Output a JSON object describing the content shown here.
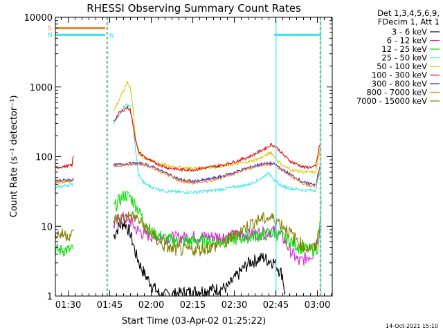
{
  "chart_data": {
    "type": "line",
    "title": "RHESSI Observing Summary Count Rates",
    "xlabel": "Start Time (03-Apr-02 01:25:22)",
    "ylabel": "Count Rate (s⁻¹ detector⁻¹)",
    "y_scale": "log",
    "ylim": [
      1,
      10000
    ],
    "xlim_minutes": [
      0,
      100
    ],
    "x_tick_labels": [
      "01:30",
      "01:45",
      "02:00",
      "02:15",
      "02:30",
      "02:45",
      "03:00"
    ],
    "x_tick_minutes": [
      4.63,
      19.63,
      34.63,
      49.63,
      64.63,
      79.63,
      94.63
    ],
    "y_tick_labels": [
      "1",
      "10",
      "100",
      "1000",
      "10000"
    ],
    "y_tick_values": [
      1,
      10,
      100,
      1000,
      10000
    ],
    "legend_header": [
      "Det 1,3,4,5,6,9,",
      "FDecim 1, Att 1"
    ],
    "legend_position": "right",
    "timestamp": "14-Oct-2021 15:10",
    "flags": [
      {
        "label": "S",
        "color": "#f08020",
        "value": 7000,
        "ranges_min": [
          [
            0,
            18
          ]
        ]
      },
      {
        "label": "N",
        "color": "#30e8f0",
        "value": 5600,
        "ranges_min": [
          [
            0,
            18
          ],
          [
            79,
            96
          ]
        ]
      }
    ],
    "vertical_markers": [
      {
        "minute": 18.6,
        "color": "#f08020",
        "style": "dashed"
      },
      {
        "minute": 18.9,
        "color": "#30e8f0",
        "style": "dashed"
      },
      {
        "minute": 79.7,
        "color": "#30e8f0",
        "style": "solid"
      },
      {
        "minute": 95.6,
        "color": "#f08020",
        "style": "dashed"
      },
      {
        "minute": 95.9,
        "color": "#30e8f0",
        "style": "solid"
      }
    ],
    "gaps_minutes": [
      [
        6.6,
        21.0
      ],
      [
        96.0,
        100
      ]
    ],
    "series": [
      {
        "name": "3 - 6 keV",
        "color": "#000000",
        "points": [
          [
            21,
            7
          ],
          [
            23,
            10
          ],
          [
            25,
            11
          ],
          [
            27,
            8
          ],
          [
            29,
            4
          ],
          [
            31,
            2.5
          ],
          [
            33,
            1.8
          ],
          [
            35,
            1.4
          ],
          [
            38,
            1
          ],
          [
            62,
            1.3
          ],
          [
            66,
            2
          ],
          [
            70,
            3
          ],
          [
            75,
            3.5
          ],
          [
            79,
            3
          ],
          [
            82,
            2
          ],
          [
            83,
            1
          ]
        ]
      },
      {
        "name": "6 - 12 keV",
        "color": "#e020e0",
        "points": [
          [
            21,
            10
          ],
          [
            23,
            13
          ],
          [
            25,
            13
          ],
          [
            27,
            12
          ],
          [
            29,
            9
          ],
          [
            31,
            8
          ],
          [
            33,
            7.5
          ],
          [
            36,
            7
          ],
          [
            40,
            6.8
          ],
          [
            45,
            6.8
          ],
          [
            50,
            7
          ],
          [
            55,
            7
          ],
          [
            60,
            7
          ],
          [
            65,
            7.3
          ],
          [
            70,
            7.5
          ],
          [
            75,
            8
          ],
          [
            79,
            8.5
          ],
          [
            82,
            7
          ],
          [
            84,
            5
          ],
          [
            88,
            3
          ],
          [
            93,
            4
          ],
          [
            96,
            10
          ]
        ]
      },
      {
        "name": "12 - 25 keV",
        "color": "#00e000",
        "points": [
          [
            0,
            4.5
          ],
          [
            3,
            4.5
          ],
          [
            6,
            4.5
          ],
          [
            21,
            18
          ],
          [
            23,
            23
          ],
          [
            25,
            28
          ],
          [
            27,
            26
          ],
          [
            29,
            20
          ],
          [
            31,
            14
          ],
          [
            33,
            10
          ],
          [
            35,
            8
          ],
          [
            40,
            6.5
          ],
          [
            45,
            6
          ],
          [
            50,
            6
          ],
          [
            55,
            6
          ],
          [
            60,
            6
          ],
          [
            65,
            6.5
          ],
          [
            70,
            7
          ],
          [
            75,
            7.5
          ],
          [
            79,
            8
          ],
          [
            82,
            7
          ],
          [
            85,
            6
          ],
          [
            88,
            5
          ],
          [
            92,
            4.5
          ],
          [
            95,
            5
          ],
          [
            96,
            20
          ]
        ]
      },
      {
        "name": "25 - 50 keV",
        "color": "#30e8f0",
        "points": [
          [
            0,
            36
          ],
          [
            3,
            38
          ],
          [
            6,
            40
          ],
          [
            21,
            300
          ],
          [
            23,
            400
          ],
          [
            25,
            520
          ],
          [
            26,
            560
          ],
          [
            27,
            500
          ],
          [
            28,
            300
          ],
          [
            29,
            120
          ],
          [
            30,
            55
          ],
          [
            32,
            42
          ],
          [
            35,
            36
          ],
          [
            40,
            32
          ],
          [
            45,
            31
          ],
          [
            50,
            31
          ],
          [
            55,
            32
          ],
          [
            60,
            34
          ],
          [
            65,
            37
          ],
          [
            70,
            40
          ],
          [
            74,
            48
          ],
          [
            77,
            58
          ],
          [
            78,
            55
          ],
          [
            79,
            45
          ],
          [
            82,
            38
          ],
          [
            85,
            35
          ],
          [
            90,
            33
          ],
          [
            94,
            33
          ],
          [
            95.5,
            60
          ]
        ]
      },
      {
        "name": "50 - 100 keV",
        "color": "#d8c800",
        "points": [
          [
            0,
            42
          ],
          [
            3,
            44
          ],
          [
            6,
            46
          ],
          [
            21,
            450
          ],
          [
            23,
            650
          ],
          [
            25,
            950
          ],
          [
            26,
            1200
          ],
          [
            27,
            1000
          ],
          [
            28,
            500
          ],
          [
            29,
            180
          ],
          [
            30,
            110
          ],
          [
            32,
            95
          ],
          [
            35,
            85
          ],
          [
            40,
            75
          ],
          [
            45,
            70
          ],
          [
            50,
            68
          ],
          [
            55,
            70
          ],
          [
            60,
            73
          ],
          [
            65,
            78
          ],
          [
            70,
            85
          ],
          [
            74,
            95
          ],
          [
            77,
            110
          ],
          [
            78,
            115
          ],
          [
            80,
            90
          ],
          [
            82,
            75
          ],
          [
            85,
            65
          ],
          [
            90,
            60
          ],
          [
            94,
            60
          ],
          [
            95.5,
            120
          ]
        ]
      },
      {
        "name": "100 - 300 keV",
        "color": "#e00000",
        "points": [
          [
            0,
            70
          ],
          [
            3,
            72
          ],
          [
            6,
            75
          ],
          [
            6.6,
            110
          ],
          [
            21,
            320
          ],
          [
            23,
            420
          ],
          [
            25,
            480
          ],
          [
            26,
            510
          ],
          [
            27,
            470
          ],
          [
            28,
            300
          ],
          [
            29,
            170
          ],
          [
            30,
            120
          ],
          [
            32,
            100
          ],
          [
            35,
            85
          ],
          [
            40,
            70
          ],
          [
            45,
            65
          ],
          [
            50,
            65
          ],
          [
            55,
            70
          ],
          [
            60,
            75
          ],
          [
            65,
            85
          ],
          [
            70,
            100
          ],
          [
            74,
            120
          ],
          [
            77,
            140
          ],
          [
            78,
            150
          ],
          [
            80,
            135
          ],
          [
            82,
            110
          ],
          [
            85,
            85
          ],
          [
            90,
            70
          ],
          [
            94,
            72
          ],
          [
            95.5,
            150
          ]
        ]
      },
      {
        "name": "300 - 800 keV",
        "color": "#2020e0",
        "points": [
          [
            0,
            45
          ],
          [
            3,
            46
          ],
          [
            6,
            47
          ],
          [
            21,
            75
          ],
          [
            24,
            78
          ],
          [
            27,
            80
          ],
          [
            30,
            80
          ],
          [
            32,
            78
          ],
          [
            35,
            72
          ],
          [
            40,
            58
          ],
          [
            45,
            47
          ],
          [
            50,
            44
          ],
          [
            55,
            47
          ],
          [
            60,
            52
          ],
          [
            65,
            60
          ],
          [
            70,
            70
          ],
          [
            74,
            78
          ],
          [
            78,
            80
          ],
          [
            80,
            75
          ],
          [
            82,
            65
          ],
          [
            85,
            55
          ],
          [
            90,
            42
          ],
          [
            94,
            40
          ],
          [
            95.5,
            70
          ]
        ]
      },
      {
        "name": "800 - 7000 keV",
        "color": "#f08020",
        "points": [
          [
            0,
            43
          ],
          [
            3,
            44
          ],
          [
            6,
            45
          ],
          [
            21,
            73
          ],
          [
            24,
            76
          ],
          [
            27,
            78
          ],
          [
            30,
            78
          ],
          [
            32,
            76
          ],
          [
            35,
            70
          ],
          [
            40,
            56
          ],
          [
            45,
            45
          ],
          [
            50,
            42
          ],
          [
            55,
            45
          ],
          [
            60,
            50
          ],
          [
            65,
            58
          ],
          [
            70,
            68
          ],
          [
            74,
            76
          ],
          [
            78,
            78
          ],
          [
            80,
            73
          ],
          [
            82,
            63
          ],
          [
            85,
            53
          ],
          [
            90,
            40
          ],
          [
            94,
            38
          ],
          [
            95.5,
            68
          ]
        ]
      },
      {
        "name": "7000 - 15000 keV",
        "color": "#808000",
        "points": [
          [
            0,
            7.5
          ],
          [
            3,
            7.5
          ],
          [
            6,
            7.5
          ],
          [
            21,
            12
          ],
          [
            24,
            13
          ],
          [
            27,
            14
          ],
          [
            29,
            13
          ],
          [
            31,
            11
          ],
          [
            33,
            9
          ],
          [
            35,
            7.5
          ],
          [
            38,
            5.5
          ],
          [
            42,
            4.6
          ],
          [
            47,
            4.5
          ],
          [
            52,
            4.6
          ],
          [
            57,
            5
          ],
          [
            62,
            6
          ],
          [
            66,
            8
          ],
          [
            70,
            10.5
          ],
          [
            74,
            12.5
          ],
          [
            78,
            13
          ],
          [
            80,
            12
          ],
          [
            83,
            9.5
          ],
          [
            86,
            7
          ],
          [
            90,
            5
          ],
          [
            94,
            4.7
          ],
          [
            95.5,
            10
          ]
        ]
      }
    ]
  }
}
